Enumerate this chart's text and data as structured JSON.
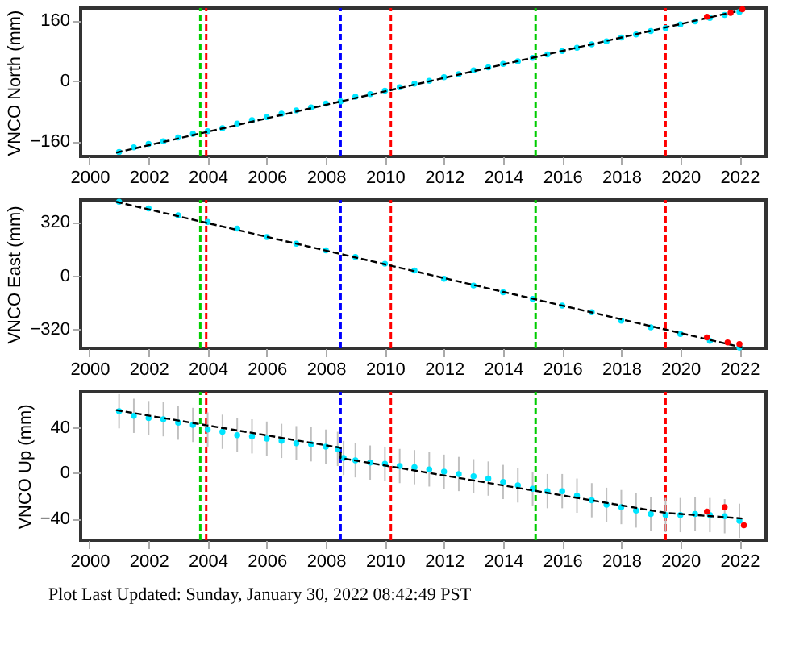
{
  "chart_data": [
    {
      "type": "scatter",
      "ylabel": "VNCO North (mm)",
      "xlim": [
        1999.7,
        2022.9
      ],
      "ylim": [
        -200,
        193
      ],
      "xticks": [
        2000,
        2002,
        2004,
        2006,
        2008,
        2010,
        2012,
        2014,
        2016,
        2018,
        2020,
        2022
      ],
      "yticks": [
        -160,
        0,
        160
      ],
      "grid": false,
      "ref_lines": [
        {
          "axis": "x",
          "value": 2003.75,
          "color": "#00cc00",
          "line_style": "dashed"
        },
        {
          "axis": "x",
          "value": 2003.95,
          "color": "#ff0000",
          "line_style": "dashed"
        },
        {
          "axis": "x",
          "value": 2008.5,
          "color": "#0000ff",
          "line_style": "dashed"
        },
        {
          "axis": "x",
          "value": 2010.2,
          "color": "#ff0000",
          "line_style": "dashed"
        },
        {
          "axis": "x",
          "value": 2015.1,
          "color": "#00cc00",
          "line_style": "dashed"
        },
        {
          "axis": "x",
          "value": 2019.5,
          "color": "#ff0000",
          "line_style": "dashed"
        }
      ],
      "series": [
        {
          "type": "scatter",
          "marker": "circle",
          "color": "#00e5ff",
          "x": [
            2001,
            2001.5,
            2002,
            2002.5,
            2003,
            2003.5,
            2004,
            2004.5,
            2005,
            2005.5,
            2006,
            2006.5,
            2007,
            2007.5,
            2008,
            2008.5,
            2009,
            2009.5,
            2010,
            2010.5,
            2011,
            2011.5,
            2012,
            2012.5,
            2013,
            2013.5,
            2014,
            2014.5,
            2015,
            2015.5,
            2016,
            2016.5,
            2017,
            2017.5,
            2018,
            2018.5,
            2019,
            2019.5,
            2020,
            2020.5,
            2021,
            2021.5,
            2022
          ],
          "values": [
            -188,
            -176,
            -167,
            -160,
            -150,
            -140,
            -133,
            -125,
            -113,
            -104,
            -96,
            -87,
            -78,
            -70,
            -60,
            -54,
            -42,
            -35,
            -26,
            -17,
            -7,
            0,
            10,
            18,
            28,
            36,
            45,
            52,
            61,
            70,
            79,
            88,
            97,
            105,
            115,
            123,
            132,
            140,
            150,
            158,
            167,
            175,
            183
          ]
        },
        {
          "type": "line",
          "line_style": "dashed",
          "color": "#000000",
          "x": [
            2000.9,
            2022.1
          ],
          "values": [
            -190,
            188
          ]
        },
        {
          "type": "scatter",
          "marker": "circle",
          "color": "#ff0000",
          "x": [
            2020.9,
            2021.7,
            2022.1
          ],
          "values": [
            170,
            180,
            190
          ]
        }
      ]
    },
    {
      "type": "scatter",
      "ylabel": "VNCO East (mm)",
      "xlim": [
        1999.7,
        2022.9
      ],
      "ylim": [
        -435,
        451
      ],
      "xticks": [
        2000,
        2002,
        2004,
        2006,
        2008,
        2010,
        2012,
        2014,
        2016,
        2018,
        2020,
        2022
      ],
      "yticks": [
        -320,
        0,
        320
      ],
      "grid": false,
      "ref_lines": [
        {
          "axis": "x",
          "value": 2003.75,
          "color": "#00cc00",
          "line_style": "dashed"
        },
        {
          "axis": "x",
          "value": 2003.95,
          "color": "#ff0000",
          "line_style": "dashed"
        },
        {
          "axis": "x",
          "value": 2008.5,
          "color": "#0000ff",
          "line_style": "dashed"
        },
        {
          "axis": "x",
          "value": 2010.2,
          "color": "#ff0000",
          "line_style": "dashed"
        },
        {
          "axis": "x",
          "value": 2015.1,
          "color": "#00cc00",
          "line_style": "dashed"
        },
        {
          "axis": "x",
          "value": 2019.5,
          "color": "#ff0000",
          "line_style": "dashed"
        }
      ],
      "series": [
        {
          "type": "scatter",
          "marker": "circle",
          "color": "#00e5ff",
          "x": [
            2001,
            2002,
            2003,
            2004,
            2005,
            2006,
            2007,
            2008,
            2009,
            2010,
            2011,
            2012,
            2013,
            2014,
            2015,
            2016,
            2017,
            2018,
            2019,
            2020,
            2021,
            2022
          ],
          "values": [
            440,
            400,
            360,
            320,
            280,
            230,
            190,
            150,
            110,
            70,
            30,
            -20,
            -60,
            -100,
            -140,
            -180,
            -220,
            -270,
            -310,
            -350,
            -390,
            -430
          ]
        },
        {
          "type": "line",
          "line_style": "dashed",
          "color": "#000000",
          "x": [
            2000.9,
            2022.1
          ],
          "values": [
            440,
            -430
          ]
        },
        {
          "type": "scatter",
          "marker": "circle",
          "color": "#ff0000",
          "x": [
            2020.9,
            2021.6,
            2022.0
          ],
          "values": [
            -370,
            -400,
            -410
          ]
        }
      ]
    },
    {
      "type": "scatter",
      "ylabel": "VNCO Up (mm)",
      "xlim": [
        1999.7,
        2022.9
      ],
      "ylim": [
        -59,
        71
      ],
      "xticks": [
        2000,
        2002,
        2004,
        2006,
        2008,
        2010,
        2012,
        2014,
        2016,
        2018,
        2020,
        2022
      ],
      "yticks": [
        -40,
        0,
        40
      ],
      "grid": false,
      "annotations": [
        "Plot Last Updated:   Sunday, January 30, 2022 08:42:49 PST"
      ],
      "ref_lines": [
        {
          "axis": "x",
          "value": 2003.75,
          "color": "#00cc00",
          "line_style": "dashed"
        },
        {
          "axis": "x",
          "value": 2003.95,
          "color": "#ff0000",
          "line_style": "dashed"
        },
        {
          "axis": "x",
          "value": 2008.5,
          "color": "#0000ff",
          "line_style": "dashed"
        },
        {
          "axis": "x",
          "value": 2010.2,
          "color": "#ff0000",
          "line_style": "dashed"
        },
        {
          "axis": "x",
          "value": 2015.1,
          "color": "#00cc00",
          "line_style": "dashed"
        },
        {
          "axis": "x",
          "value": 2019.5,
          "color": "#ff0000",
          "line_style": "dashed"
        }
      ],
      "series": [
        {
          "type": "scatter",
          "marker": "circle",
          "color": "#00e5ff",
          "x": [
            2001,
            2001.5,
            2002,
            2002.5,
            2003,
            2003.5,
            2004,
            2004.5,
            2005,
            2005.5,
            2006,
            2006.5,
            2007,
            2007.5,
            2008,
            2008.4,
            2008.6,
            2009,
            2009.5,
            2010,
            2010.5,
            2011,
            2011.5,
            2012,
            2012.5,
            2013,
            2013.5,
            2014,
            2014.5,
            2015,
            2015.5,
            2016,
            2016.5,
            2017,
            2017.5,
            2018,
            2018.5,
            2019,
            2019.5,
            2020,
            2020.5,
            2021,
            2021.5,
            2022
          ],
          "values": [
            54,
            50,
            48,
            47,
            44,
            42,
            38,
            36,
            33,
            32,
            30,
            28,
            26,
            25,
            23,
            21,
            13,
            11,
            9,
            8,
            6,
            5,
            3,
            1,
            -1,
            -3,
            -5,
            -8,
            -11,
            -14,
            -16,
            -16,
            -20,
            -24,
            -28,
            -30,
            -33,
            -36,
            -37,
            -37,
            -36,
            -37,
            -38,
            -42
          ],
          "errors": [
            15,
            15,
            15,
            15,
            15,
            15,
            15,
            15,
            15,
            15,
            15,
            15,
            15,
            15,
            15,
            15,
            15,
            15,
            15,
            15,
            15,
            15,
            15,
            15,
            15,
            15,
            15,
            15,
            15,
            15,
            15,
            15,
            15,
            15,
            15,
            15,
            15,
            15,
            15,
            15,
            15,
            15,
            15,
            15
          ]
        },
        {
          "type": "line",
          "line_style": "dashed",
          "color": "#000000",
          "x": [
            2000.9,
            2008.5,
            2008.5,
            2019.5,
            2022.1
          ],
          "values": [
            55,
            22,
            13,
            -35,
            -40
          ]
        },
        {
          "type": "scatter",
          "marker": "circle",
          "color": "#ff0000",
          "x": [
            2020.9,
            2021.5,
            2022.15
          ],
          "values": [
            -34,
            -30,
            -46
          ]
        }
      ]
    }
  ]
}
